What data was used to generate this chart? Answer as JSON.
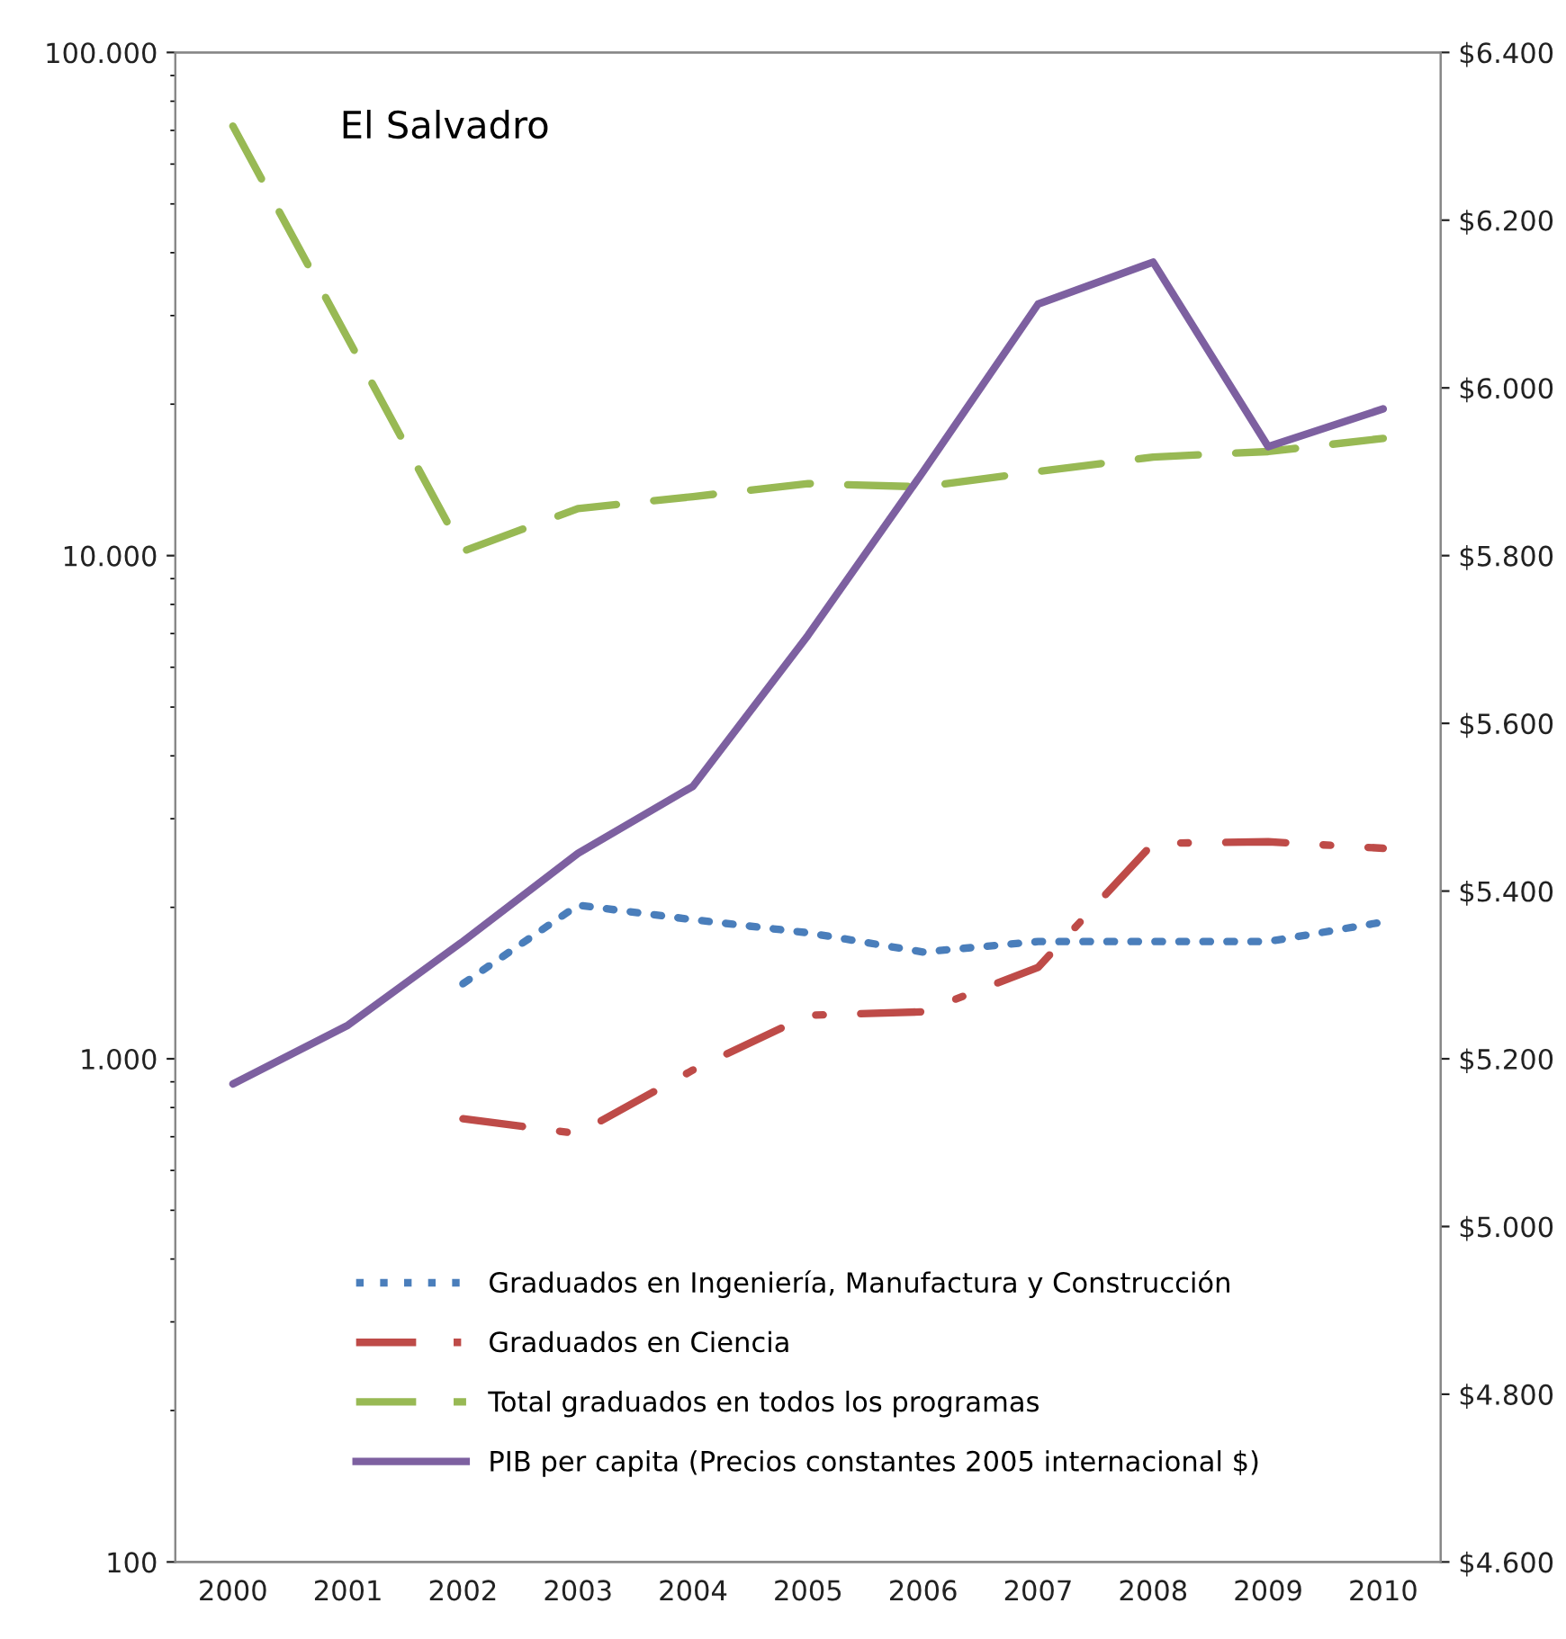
{
  "chart_data": {
    "type": "line",
    "title": "El Salvadro",
    "categories": [
      "2000",
      "2001",
      "2002",
      "2003",
      "2004",
      "2005",
      "2006",
      "2007",
      "2008",
      "2009",
      "2010"
    ],
    "series": [
      {
        "name": "Graduados en Ingeniería, Manufactura y Construcción",
        "color": "#4a7ebb",
        "line_style": "dotted",
        "values": [
          null,
          null,
          1410,
          2020,
          1890,
          1780,
          1630,
          1710,
          1710,
          1710,
          1870
        ]
      },
      {
        "name": "Graduados en Ciencia",
        "color": "#be4b48",
        "line_style": "dashdot",
        "values": [
          null,
          null,
          760,
          710,
          950,
          1220,
          1240,
          1520,
          2680,
          2700,
          2620
        ]
      },
      {
        "name": "Total graduados en todos los programas",
        "color": "#98b954",
        "line_style": "dashed",
        "values": [
          71400,
          null,
          10200,
          12400,
          13100,
          13900,
          13700,
          14700,
          15700,
          16100,
          17100
        ]
      },
      {
        "name": "PIB per capita (Precios constantes 2005 internacional $)",
        "color": "#7d60a0",
        "line_style": "solid",
        "axis": "y2",
        "values": [
          5170,
          5240,
          5340,
          5445,
          5525,
          5705,
          5900,
          6100,
          6150,
          5930,
          5975
        ]
      }
    ],
    "log": "y",
    "ylim": [
      100,
      100000
    ],
    "yticks": [
      {
        "value": 100,
        "label": "100"
      },
      {
        "value": 1000,
        "label": "1.000"
      },
      {
        "value": 10000,
        "label": "10.000"
      },
      {
        "value": 100000,
        "label": "100.000"
      }
    ],
    "y2lim": [
      4600,
      6400
    ],
    "y2ticks": [
      {
        "value": 4600,
        "label": "$4.600"
      },
      {
        "value": 4800,
        "label": "$4.800"
      },
      {
        "value": 5000,
        "label": "$5.000"
      },
      {
        "value": 5200,
        "label": "$5.200"
      },
      {
        "value": 5400,
        "label": "$5.400"
      },
      {
        "value": 5600,
        "label": "$5.600"
      },
      {
        "value": 5800,
        "label": "$5.800"
      },
      {
        "value": 6000,
        "label": "$6.000"
      },
      {
        "value": 6200,
        "label": "$6.200"
      },
      {
        "value": 6400,
        "label": "$6.400"
      }
    ],
    "grid": false,
    "legend": "bottom"
  }
}
